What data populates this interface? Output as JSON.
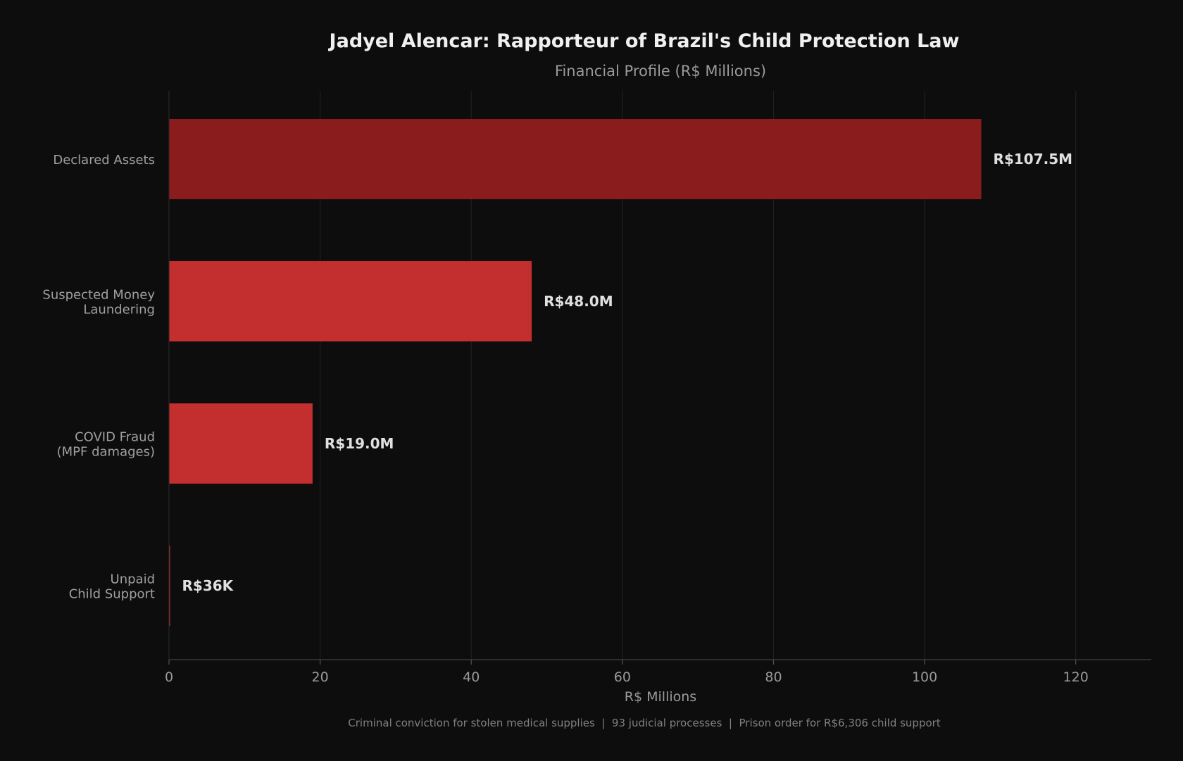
{
  "chart_data": {
    "type": "bar",
    "orientation": "horizontal",
    "title": "Jadyel Alencar: Rapporteur of Brazil's Child Protection Law",
    "subtitle": "Financial Profile (R$ Millions)",
    "xlabel": "R$ Millions",
    "ylabel": "",
    "xlim": [
      0,
      130
    ],
    "xticks": [
      0,
      20,
      40,
      60,
      80,
      100,
      120
    ],
    "grid": "vertical",
    "categories": [
      [
        "Declared Assets"
      ],
      [
        "Suspected Money",
        "Laundering"
      ],
      [
        "COVID Fraud",
        "(MPF damages)"
      ],
      [
        "Unpaid",
        "Child Support"
      ]
    ],
    "values": [
      107.5,
      48.0,
      19.0,
      0.036
    ],
    "data_labels": [
      "R$107.5M",
      "R$48.0M",
      "R$19.0M",
      "R$36K"
    ],
    "colors": [
      "#8b1c1e",
      "#c32e2f",
      "#c32e2f",
      "#c32e2f"
    ],
    "footnote": "Criminal conviction for stolen medical supplies  |  93 judicial processes  |  Prison order for R$6,306 child support"
  }
}
